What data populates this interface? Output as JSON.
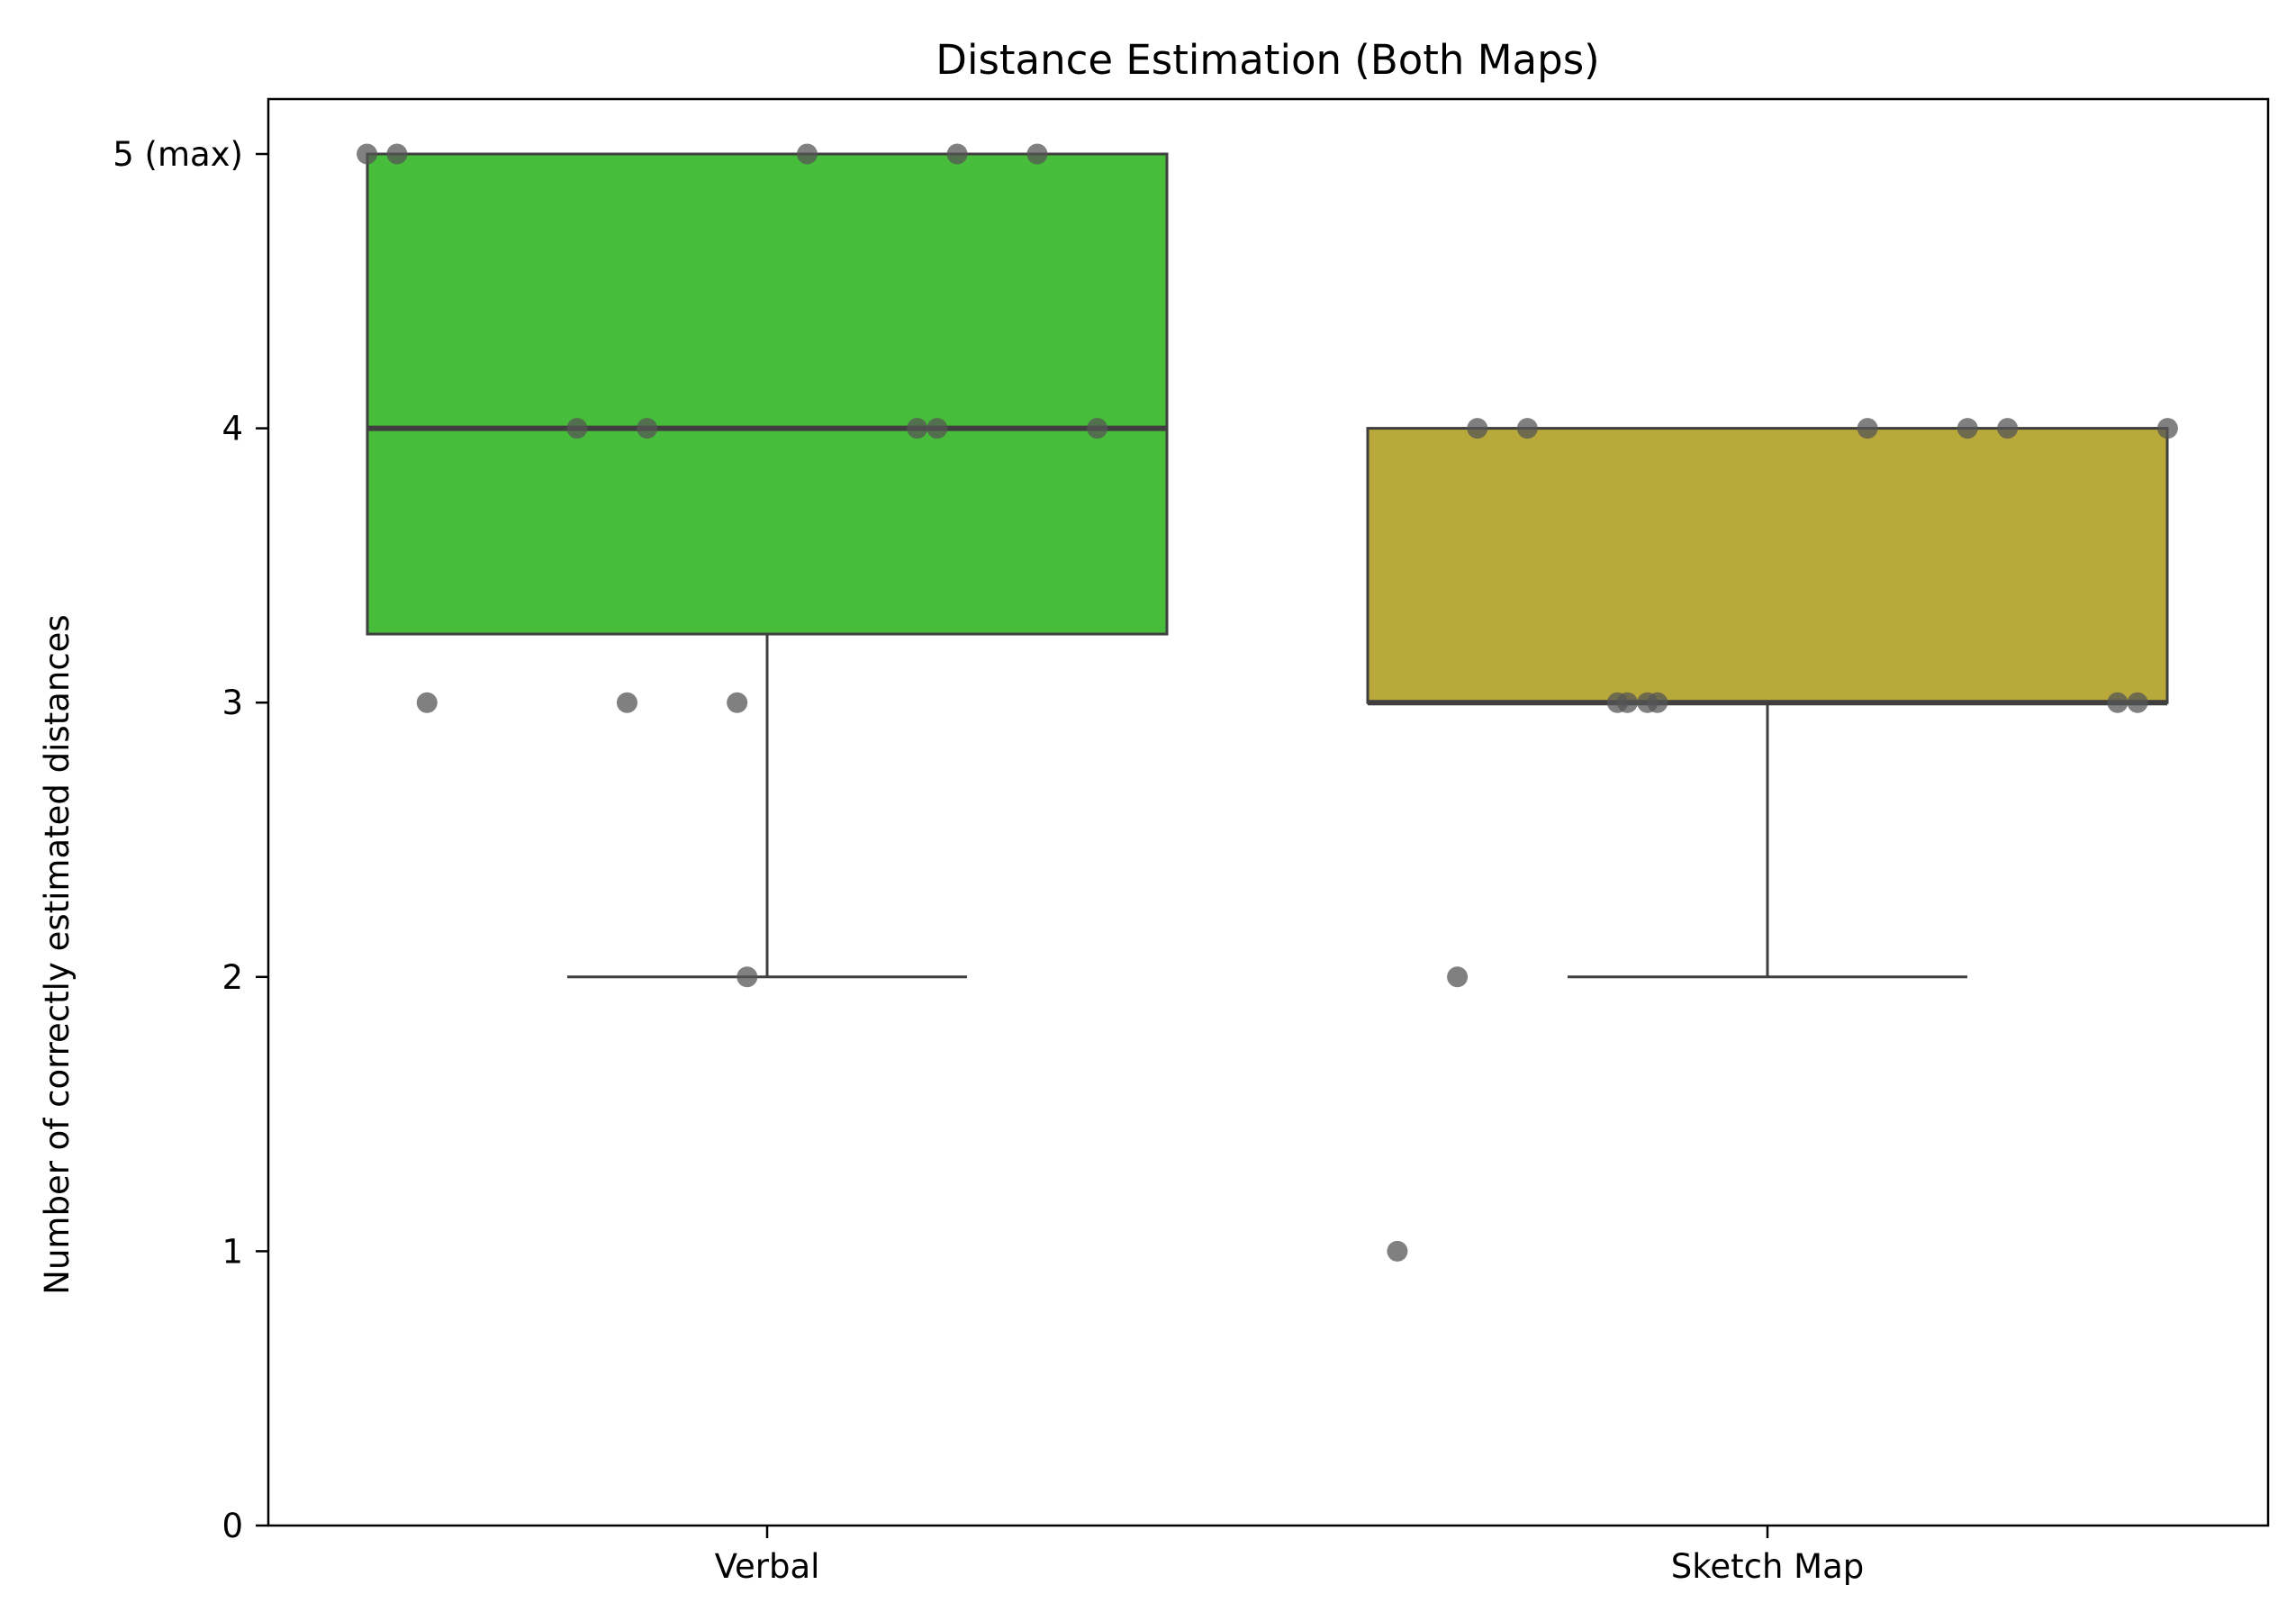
{
  "chart_data": {
    "type": "box",
    "title": "Distance Estimation (Both Maps)",
    "xlabel": "",
    "ylabel": "Number of correctly estimated distances",
    "ylim": [
      0,
      5.2
    ],
    "yticks": [
      {
        "value": 0,
        "label": "0"
      },
      {
        "value": 1,
        "label": "1"
      },
      {
        "value": 2,
        "label": "2"
      },
      {
        "value": 3,
        "label": "3"
      },
      {
        "value": 4,
        "label": "4"
      },
      {
        "value": 5,
        "label": "5 (max)"
      }
    ],
    "categories": [
      "Verbal",
      "Sketch Map"
    ],
    "boxes": [
      {
        "category": "Verbal",
        "q1": 3.25,
        "median": 4,
        "q3": 5,
        "whisker_low": 2,
        "whisker_high": 5,
        "color": "#47bd3b"
      },
      {
        "category": "Sketch Map",
        "q1": 3,
        "median": 3,
        "q3": 4,
        "whisker_low": 2,
        "whisker_high": 4,
        "color": "#b9a83a"
      }
    ],
    "points": [
      {
        "category": "Verbal",
        "values": [
          5,
          5,
          5,
          5,
          5,
          4,
          4,
          4,
          4,
          4,
          3,
          3,
          3,
          2
        ],
        "offsets": [
          -0.4,
          -0.37,
          0.04,
          0.19,
          0.27,
          -0.19,
          -0.12,
          0.15,
          0.17,
          0.33,
          -0.34,
          -0.14,
          -0.03,
          -0.02
        ]
      },
      {
        "category": "Sketch Map",
        "values": [
          4,
          4,
          4,
          4,
          4,
          4,
          3,
          3,
          3,
          3,
          3,
          3,
          2,
          1
        ],
        "offsets": [
          -0.29,
          -0.24,
          0.1,
          0.2,
          0.24,
          0.4,
          -0.15,
          -0.14,
          -0.12,
          -0.11,
          0.35,
          0.37,
          -0.31,
          -0.37
        ]
      }
    ],
    "point_color": "#555555",
    "grid": false,
    "legend": "none"
  }
}
